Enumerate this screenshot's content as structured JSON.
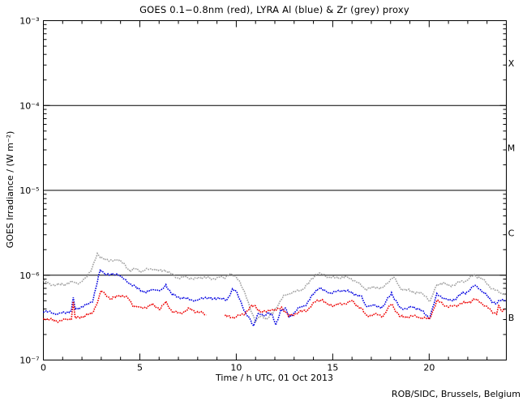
{
  "chart_data": {
    "type": "line",
    "title": "GOES 0.1−0.8nm (red), LYRA Al (blue) & Zr (grey) proxy",
    "xlabel": "Time / h UTC, 01 Oct 2013",
    "ylabel": "GOES Irradiance / (W m⁻²)",
    "credit": "ROB/SIDC, Brussels, Belgium",
    "grid": false,
    "legend": "in title",
    "x_axis": {
      "min": 0,
      "max": 24,
      "major_ticks": [
        0,
        5,
        10,
        15,
        20
      ],
      "minor_tick_step": 1
    },
    "y_axis": {
      "scale": "log",
      "min": 1e-07,
      "max": 0.001,
      "tick_values": [
        0.001,
        0.0001,
        1e-05,
        1e-06,
        1e-07
      ],
      "tick_labels": [
        "10⁻³",
        "10⁻⁴",
        "10⁻⁵",
        "10⁻⁶",
        "10⁻⁷"
      ]
    },
    "hlines": [
      0.0001,
      1e-05,
      1e-06
    ],
    "flare_classes": [
      {
        "label": "X",
        "value": 0.000316
      },
      {
        "label": "M",
        "value": 3.16e-05
      },
      {
        "label": "C",
        "value": 3.16e-06
      },
      {
        "label": "B",
        "value": 3.16e-07
      }
    ],
    "series": [
      {
        "id": "lyra-zr-proxy",
        "name": "LYRA Zr (grey) proxy",
        "color": "#a0a0a0",
        "points": [
          [
            0,
            8.6e-07
          ],
          [
            0.3,
            7.9e-07
          ],
          [
            0.7,
            7.7e-07
          ],
          [
            1.1,
            7.8e-07
          ],
          [
            1.5,
            8.3e-07
          ],
          [
            1.9,
            8.1e-07
          ],
          [
            2.2,
            9.2e-07
          ],
          [
            2.5,
            1.2e-06
          ],
          [
            2.8,
            1.73e-06
          ],
          [
            3.1,
            1.6e-06
          ],
          [
            3.4,
            1.45e-06
          ],
          [
            3.8,
            1.55e-06
          ],
          [
            4.2,
            1.35e-06
          ],
          [
            4.5,
            1.12e-06
          ],
          [
            4.8,
            1.2e-06
          ],
          [
            5.1,
            1.1e-06
          ],
          [
            5.35,
            1.16e-06
          ],
          [
            5.65,
            1.2e-06
          ],
          [
            6.0,
            1.12e-06
          ],
          [
            6.3,
            1.16e-06
          ],
          [
            6.7,
            1e-06
          ],
          [
            7.0,
            9.3e-07
          ],
          [
            7.4,
            9.5e-07
          ],
          [
            7.85,
            9e-07
          ],
          [
            8.3,
            9.5e-07
          ],
          [
            8.7,
            9e-07
          ],
          [
            9.1,
            9.5e-07
          ],
          [
            9.4,
            9.2e-07
          ],
          [
            9.65,
            1.05e-06
          ],
          [
            9.9,
            9.7e-07
          ],
          [
            10.15,
            8.8e-07
          ],
          [
            10.4,
            6.5e-07
          ],
          [
            10.7,
            4.2e-07
          ],
          [
            11.0,
            2.9e-07
          ],
          [
            11.3,
            3.3e-07
          ],
          [
            11.6,
            3.1e-07
          ],
          [
            11.9,
            3.6e-07
          ],
          [
            12.1,
            4.3e-07
          ],
          [
            12.45,
            5.6e-07
          ],
          [
            12.8,
            6.2e-07
          ],
          [
            13.1,
            6.4e-07
          ],
          [
            13.4,
            6.8e-07
          ],
          [
            13.75,
            8e-07
          ],
          [
            14.15,
            1.05e-06
          ],
          [
            14.45,
            1.02e-06
          ],
          [
            14.8,
            9.5e-07
          ],
          [
            15.1,
            9.3e-07
          ],
          [
            15.55,
            9.6e-07
          ],
          [
            16.0,
            9e-07
          ],
          [
            16.4,
            7.8e-07
          ],
          [
            16.7,
            6.9e-07
          ],
          [
            17.2,
            7.2e-07
          ],
          [
            17.6,
            7e-07
          ],
          [
            18.0,
            9e-07
          ],
          [
            18.15,
            9.6e-07
          ],
          [
            18.5,
            7e-07
          ],
          [
            19.0,
            6.5e-07
          ],
          [
            19.5,
            6.2e-07
          ],
          [
            19.85,
            5.6e-07
          ],
          [
            20.05,
            4.9e-07
          ],
          [
            20.4,
            7.7e-07
          ],
          [
            20.7,
            8.2e-07
          ],
          [
            21.0,
            7.5e-07
          ],
          [
            21.3,
            7.7e-07
          ],
          [
            21.65,
            8.4e-07
          ],
          [
            21.9,
            8.6e-07
          ],
          [
            22.1,
            9.2e-07
          ],
          [
            22.35,
            1e-06
          ],
          [
            22.6,
            9.5e-07
          ],
          [
            22.9,
            8.4e-07
          ],
          [
            23.25,
            7e-07
          ],
          [
            23.5,
            6.5e-07
          ],
          [
            23.7,
            6.2e-07
          ],
          [
            23.95,
            6e-07
          ]
        ]
      },
      {
        "id": "lyra-al-proxy",
        "name": "LYRA Al (blue) proxy",
        "color": "#0000e0",
        "points": [
          [
            0,
            3.8e-07
          ],
          [
            0.4,
            3.6e-07
          ],
          [
            0.8,
            3.5e-07
          ],
          [
            1.2,
            3.7e-07
          ],
          [
            1.45,
            3.8e-07
          ],
          [
            1.55,
            5.4e-07
          ],
          [
            1.65,
            3.9e-07
          ],
          [
            2.0,
            4.3e-07
          ],
          [
            2.3,
            4.5e-07
          ],
          [
            2.55,
            5e-07
          ],
          [
            2.75,
            7.5e-07
          ],
          [
            2.95,
            1.15e-06
          ],
          [
            3.2,
            1.05e-06
          ],
          [
            3.45,
            1e-06
          ],
          [
            3.85,
            1.05e-06
          ],
          [
            4.2,
            8.8e-07
          ],
          [
            4.5,
            8e-07
          ],
          [
            4.85,
            7e-07
          ],
          [
            5.2,
            6.5e-07
          ],
          [
            5.35,
            6.2e-07
          ],
          [
            5.75,
            6.9e-07
          ],
          [
            6.1,
            6.45e-07
          ],
          [
            6.35,
            7.7e-07
          ],
          [
            6.7,
            5.8e-07
          ],
          [
            7.1,
            5.5e-07
          ],
          [
            7.55,
            5.2e-07
          ],
          [
            8.0,
            5e-07
          ],
          [
            8.35,
            5.5e-07
          ],
          [
            8.8,
            5.2e-07
          ],
          [
            9.05,
            5.5e-07
          ],
          [
            9.5,
            5e-07
          ],
          [
            9.8,
            6.9e-07
          ],
          [
            10.0,
            6.3e-07
          ],
          [
            10.25,
            4.8e-07
          ],
          [
            10.5,
            3.5e-07
          ],
          [
            10.9,
            2.55e-07
          ],
          [
            11.1,
            3.5e-07
          ],
          [
            11.45,
            3.3e-07
          ],
          [
            11.65,
            3.7e-07
          ],
          [
            11.85,
            3.4e-07
          ],
          [
            12.05,
            2.55e-07
          ],
          [
            12.3,
            3.9e-07
          ],
          [
            12.55,
            4e-07
          ],
          [
            12.75,
            3.2e-07
          ],
          [
            13.2,
            4e-07
          ],
          [
            13.65,
            4.6e-07
          ],
          [
            14.15,
            6.7e-07
          ],
          [
            14.3,
            7.2e-07
          ],
          [
            14.6,
            6.45e-07
          ],
          [
            14.9,
            6.2e-07
          ],
          [
            15.3,
            6.45e-07
          ],
          [
            15.55,
            6.7e-07
          ],
          [
            16.0,
            6.2e-07
          ],
          [
            16.5,
            5.5e-07
          ],
          [
            16.7,
            4.4e-07
          ],
          [
            17.2,
            4.35e-07
          ],
          [
            17.6,
            4.2e-07
          ],
          [
            18.05,
            6.2e-07
          ],
          [
            18.5,
            4e-07
          ],
          [
            19.1,
            4.2e-07
          ],
          [
            19.5,
            4e-07
          ],
          [
            20.0,
            3.1e-07
          ],
          [
            20.4,
            5.9e-07
          ],
          [
            20.7,
            5.5e-07
          ],
          [
            21.05,
            5e-07
          ],
          [
            21.3,
            5.2e-07
          ],
          [
            21.65,
            6e-07
          ],
          [
            21.9,
            6.2e-07
          ],
          [
            22.35,
            7.5e-07
          ],
          [
            22.55,
            7.2e-07
          ],
          [
            22.9,
            6e-07
          ],
          [
            23.25,
            5e-07
          ],
          [
            23.5,
            4.6e-07
          ],
          [
            23.7,
            5e-07
          ],
          [
            23.95,
            5.2e-07
          ]
        ]
      },
      {
        "id": "goes-xray",
        "name": "GOES 0.1–0.8nm (red)",
        "color": "#ee0000",
        "points": [
          [
            0,
            3.1e-07
          ],
          [
            0.4,
            2.95e-07
          ],
          [
            0.8,
            2.9e-07
          ],
          [
            1.2,
            3e-07
          ],
          [
            1.45,
            3.1e-07
          ],
          [
            1.55,
            4.8e-07
          ],
          [
            1.65,
            3.1e-07
          ],
          [
            2.1,
            3.3e-07
          ],
          [
            2.5,
            3.5e-07
          ],
          [
            2.75,
            4.5e-07
          ],
          [
            3.0,
            6.5e-07
          ],
          [
            3.25,
            5.9e-07
          ],
          [
            3.5,
            5.2e-07
          ],
          [
            3.95,
            5.8e-07
          ],
          [
            4.25,
            5.5e-07
          ],
          [
            4.45,
            5.2e-07
          ],
          [
            4.65,
            4.4e-07
          ],
          [
            5.0,
            4.1e-07
          ],
          [
            5.35,
            4.2e-07
          ],
          [
            5.65,
            4.5e-07
          ],
          [
            6.05,
            4e-07
          ],
          [
            6.35,
            4.8e-07
          ],
          [
            6.7,
            3.7e-07
          ],
          [
            7.1,
            3.55e-07
          ],
          [
            7.55,
            4e-07
          ],
          [
            7.95,
            3.7e-07
          ],
          [
            8.2,
            3.6e-07
          ],
          [
            8.45,
            3.4e-07
          ],
          [
            8.7,
            null
          ],
          [
            9.4,
            3.3e-07
          ],
          [
            9.95,
            3.2e-07
          ],
          [
            10.4,
            3.5e-07
          ],
          [
            10.75,
            4.2e-07
          ],
          [
            10.95,
            4.4e-07
          ],
          [
            11.25,
            3.7e-07
          ],
          [
            11.5,
            3.7e-07
          ],
          [
            11.8,
            4e-07
          ],
          [
            12.05,
            3.8e-07
          ],
          [
            12.35,
            4.2e-07
          ],
          [
            12.7,
            3.3e-07
          ],
          [
            13.0,
            3.45e-07
          ],
          [
            13.3,
            3.7e-07
          ],
          [
            13.65,
            3.85e-07
          ],
          [
            14.15,
            4.95e-07
          ],
          [
            14.45,
            5.2e-07
          ],
          [
            14.7,
            4.5e-07
          ],
          [
            15.0,
            4.4e-07
          ],
          [
            15.55,
            4.6e-07
          ],
          [
            16.0,
            4.95e-07
          ],
          [
            16.5,
            4e-07
          ],
          [
            16.75,
            3.3e-07
          ],
          [
            17.2,
            3.45e-07
          ],
          [
            17.6,
            3.3e-07
          ],
          [
            18.05,
            4.6e-07
          ],
          [
            18.5,
            3.2e-07
          ],
          [
            19.1,
            3.3e-07
          ],
          [
            19.5,
            3.2e-07
          ],
          [
            20.0,
            3e-07
          ],
          [
            20.4,
            4.95e-07
          ],
          [
            20.7,
            4.6e-07
          ],
          [
            21.05,
            4.2e-07
          ],
          [
            21.3,
            4.35e-07
          ],
          [
            21.65,
            4.6e-07
          ],
          [
            21.9,
            4.7e-07
          ],
          [
            22.35,
            5.2e-07
          ],
          [
            22.55,
            4.95e-07
          ],
          [
            22.9,
            4.4e-07
          ],
          [
            23.25,
            3.7e-07
          ],
          [
            23.5,
            3.6e-07
          ],
          [
            23.6,
            4.4e-07
          ],
          [
            23.75,
            3.7e-07
          ],
          [
            23.95,
            3.9e-07
          ]
        ]
      }
    ]
  }
}
